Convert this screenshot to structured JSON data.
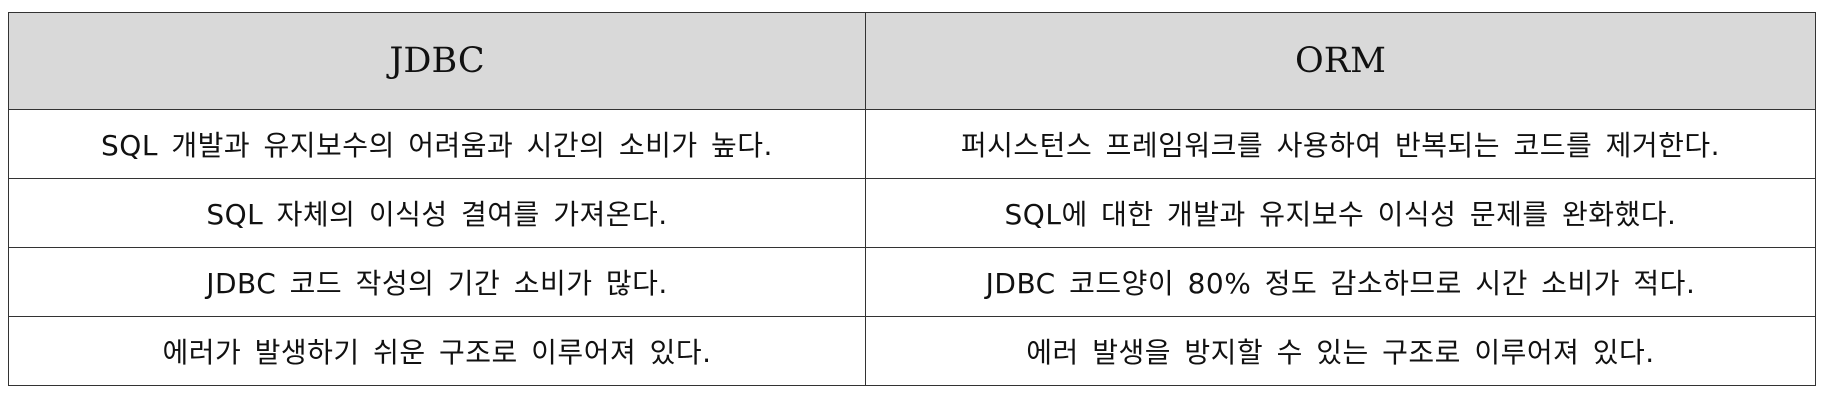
{
  "table": {
    "headers": [
      "JDBC",
      "ORM"
    ],
    "rows": [
      [
        "SQL 개발과 유지보수의 어려움과 시간의 소비가 높다.",
        "퍼시스턴스 프레임워크를 사용하여 반복되는 코드를 제거한다."
      ],
      [
        "SQL 자체의 이식성 결여를 가져온다.",
        "SQL에 대한 개발과 유지보수 이식성 문제를 완화했다."
      ],
      [
        "JDBC 코드 작성의 기간 소비가 많다.",
        "JDBC 코드양이 80% 정도 감소하므로 시간 소비가 적다."
      ],
      [
        "에러가 발생하기 쉬운 구조로 이루어져 있다.",
        "에러 발생을 방지할 수 있는 구조로 이루어져 있다."
      ]
    ]
  }
}
